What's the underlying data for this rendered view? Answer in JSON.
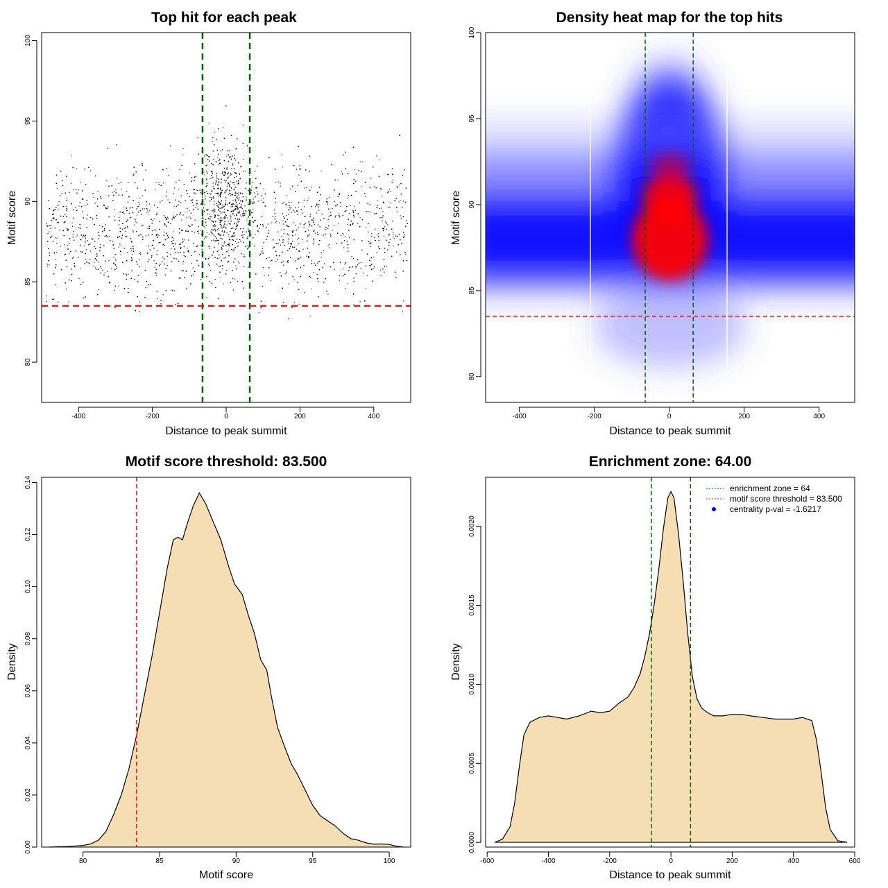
{
  "chart_data": [
    {
      "id": "p1",
      "type": "scatter",
      "title": "Top hit for each peak",
      "xlabel": "Distance to peak summit",
      "ylabel": "Motif score",
      "xlim": [
        -500,
        500
      ],
      "ylim": [
        77.5,
        100.5
      ],
      "xticks": [
        "-400",
        "-200",
        "0",
        "200",
        "400"
      ],
      "yticks": [
        "80",
        "85",
        "90",
        "95",
        "100"
      ],
      "enrichment_zone": 64,
      "score_threshold": 83.5,
      "points_note": "dense cloud of top hits: x roughly uniform in [-490, 490], scores mostly 80-100, centered near 88, denser and higher near 0"
    },
    {
      "id": "p2",
      "type": "heatmap",
      "title": "Density heat map for the top hits",
      "xlabel": "Distance to peak summit",
      "ylabel": "Motif score",
      "xlim": [
        -490,
        495
      ],
      "ylim": [
        78.5,
        100
      ],
      "xticks": [
        "-400",
        "-200",
        "0",
        "200",
        "400"
      ],
      "yticks": [
        "80",
        "85",
        "90",
        "95",
        "100"
      ],
      "enrichment_zone": 64,
      "score_threshold": 83.5,
      "colors": [
        "#ffffff",
        "#0000ff",
        "#ff0000"
      ],
      "hotspot": {
        "x": 0,
        "y": 89
      }
    },
    {
      "id": "p3",
      "type": "area",
      "title": "Motif score threshold: 83.500",
      "xlabel": "Motif score",
      "ylabel": "Density",
      "xlim": [
        77.3,
        101.4
      ],
      "ylim": [
        0,
        0.142
      ],
      "xticks": [
        "80",
        "85",
        "90",
        "95",
        "100"
      ],
      "yticks": [
        "0.00",
        "0.02",
        "0.04",
        "0.06",
        "0.08",
        "0.10",
        "0.12",
        "0.14"
      ],
      "threshold": 83.5,
      "fill": "#f5deb3",
      "x": [
        77.8,
        79,
        80,
        80.5,
        81,
        81.5,
        82,
        82.5,
        83,
        83.5,
        84,
        84.5,
        85,
        85.5,
        85.9,
        86.2,
        86.5,
        86.8,
        87.2,
        87.6,
        88,
        88.5,
        89,
        89.5,
        89.9,
        90.4,
        90.8,
        91.2,
        91.6,
        92,
        92.3,
        92.7,
        93.2,
        93.6,
        94,
        94.5,
        95,
        95.5,
        96,
        96.5,
        97,
        97.5,
        98,
        98.5,
        99,
        99.5,
        100,
        100.5,
        100.9
      ],
      "values": [
        0,
        0.0002,
        0.0006,
        0.0012,
        0.0026,
        0.006,
        0.0125,
        0.02,
        0.03,
        0.043,
        0.058,
        0.073,
        0.09,
        0.107,
        0.118,
        0.119,
        0.118,
        0.124,
        0.131,
        0.136,
        0.132,
        0.125,
        0.118,
        0.108,
        0.101,
        0.097,
        0.089,
        0.082,
        0.072,
        0.068,
        0.058,
        0.046,
        0.038,
        0.032,
        0.028,
        0.022,
        0.016,
        0.012,
        0.01,
        0.008,
        0.0052,
        0.0032,
        0.0026,
        0.0016,
        0.0011,
        0.0012,
        0.001,
        0.0003,
        0
      ]
    },
    {
      "id": "p4",
      "type": "area",
      "title": "Enrichment zone: 64.00",
      "xlabel": "Distance to peak summit",
      "ylabel": "Density",
      "xlim": [
        -605,
        600
      ],
      "ylim": [
        -3e-05,
        0.00231
      ],
      "xticks": [
        "-600",
        "-400",
        "-200",
        "0",
        "200",
        "400",
        "600"
      ],
      "yticks": [
        "0.0000",
        "0.0005",
        "0.0010",
        "0.0015",
        "0.0020"
      ],
      "enrichment_zone": 64,
      "fill": "#f5deb3",
      "x": [
        -575,
        -550,
        -525,
        -510,
        -495,
        -480,
        -460,
        -430,
        -400,
        -370,
        -340,
        -300,
        -260,
        -230,
        -200,
        -170,
        -140,
        -120,
        -100,
        -85,
        -70,
        -55,
        -40,
        -25,
        -10,
        0,
        10,
        25,
        40,
        55,
        70,
        85,
        100,
        120,
        140,
        170,
        200,
        230,
        260,
        300,
        340,
        370,
        400,
        430,
        460,
        475,
        490,
        505,
        520,
        545,
        575
      ],
      "values": [
        0,
        2e-05,
        0.0001,
        0.00025,
        0.00048,
        0.00068,
        0.00076,
        0.00079,
        0.0008,
        0.00079,
        0.00078,
        0.0008,
        0.00083,
        0.00082,
        0.00083,
        0.00088,
        0.00092,
        0.00098,
        0.00107,
        0.00118,
        0.00132,
        0.0015,
        0.00172,
        0.00198,
        0.00218,
        0.00222,
        0.00218,
        0.00195,
        0.00165,
        0.00132,
        0.00105,
        0.00091,
        0.00085,
        0.00082,
        0.0008,
        0.0008,
        0.00081,
        0.00081,
        0.0008,
        0.00079,
        0.00078,
        0.00078,
        0.00078,
        0.00079,
        0.00077,
        0.00065,
        0.00045,
        0.00022,
        8e-05,
        1e-05,
        0
      ],
      "legend": [
        {
          "label": "enrichment zone = 64",
          "color": "#006400",
          "style": "dotted"
        },
        {
          "label": "motif score threshold = 83.500",
          "color": "#ff0000",
          "style": "dotted"
        },
        {
          "label": "centrality p-val = -1.6217",
          "color": "#0000ff",
          "style": "point"
        }
      ]
    }
  ]
}
